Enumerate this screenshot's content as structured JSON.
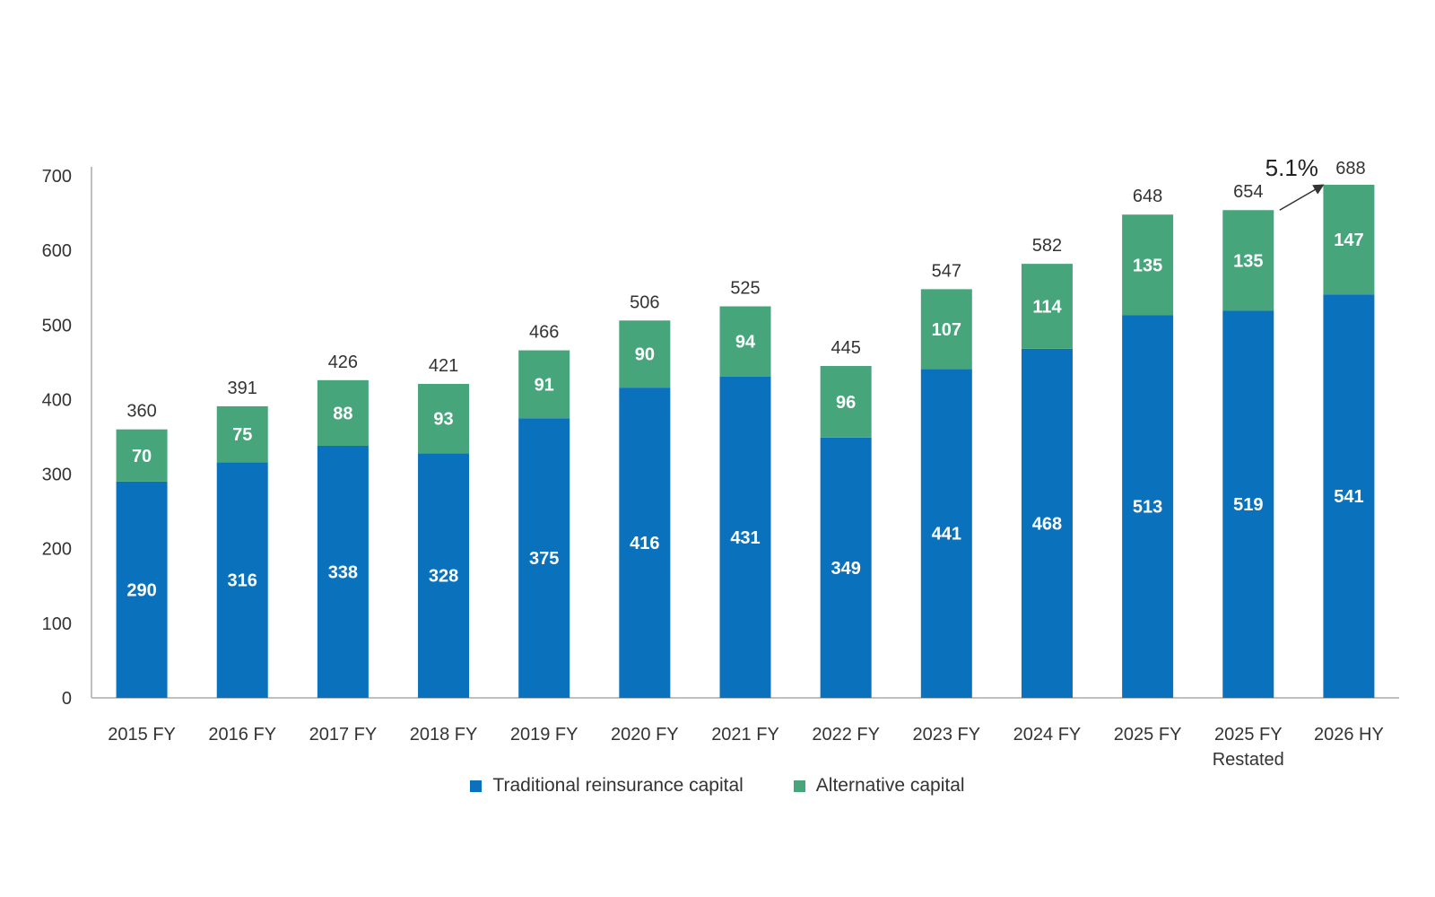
{
  "chart_data": {
    "type": "bar",
    "stacked": true,
    "categories": [
      "2015 FY",
      "2016 FY",
      "2017 FY",
      "2018 FY",
      "2019 FY",
      "2020 FY",
      "2021 FY",
      "2022 FY",
      "2023 FY",
      "2024 FY",
      "2025 FY",
      "2025 FY\nRestated",
      "2026 HY"
    ],
    "series": [
      {
        "name": "Traditional reinsurance capital",
        "color": "#0a72bd",
        "values": [
          290,
          316,
          338,
          328,
          375,
          416,
          431,
          349,
          441,
          468,
          513,
          519,
          541
        ]
      },
      {
        "name": "Alternative capital",
        "color": "#47a57c",
        "values": [
          70,
          75,
          88,
          93,
          91,
          90,
          94,
          96,
          107,
          114,
          135,
          135,
          147
        ]
      }
    ],
    "totals": [
      360,
      391,
      426,
      421,
      466,
      506,
      525,
      445,
      547,
      582,
      648,
      654,
      688
    ],
    "annotation": {
      "text": "5.1%",
      "from_category": "2025 FY\nRestated",
      "to_category": "2026 HY"
    },
    "title": "",
    "xlabel": "",
    "ylabel": "",
    "ylim": [
      0,
      700
    ],
    "yticks": [
      0,
      100,
      200,
      300,
      400,
      500,
      600,
      700
    ],
    "grid": false,
    "legend_position": "bottom"
  }
}
